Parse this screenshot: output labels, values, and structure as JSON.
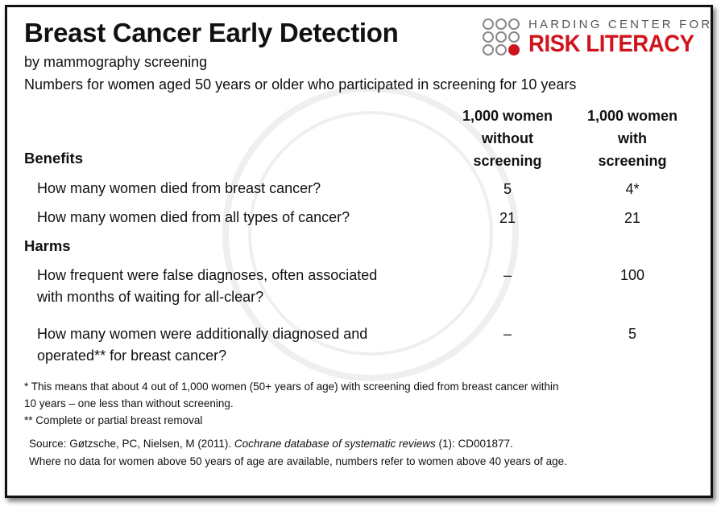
{
  "title": "Breast Cancer Early Detection",
  "subtitle": "by mammography screening",
  "description": "Numbers for women aged 50 years or older who participated in screening for 10 years",
  "logo": {
    "line1": "HARDING CENTER FOR",
    "line2": "RISK LITERACY",
    "accent": "#d0141e"
  },
  "columns": {
    "without": [
      "1,000 women",
      "without",
      "screening"
    ],
    "with": [
      "1,000 women",
      "with",
      "screening"
    ]
  },
  "sections": {
    "benefits": {
      "label": "Benefits",
      "rows": [
        {
          "question": "How many women died from breast cancer?",
          "without": "5",
          "with": "4*"
        },
        {
          "question": "How many women died from all types of cancer?",
          "without": "21",
          "with": "21"
        }
      ]
    },
    "harms": {
      "label": "Harms",
      "rows": [
        {
          "question": [
            "How frequent were false diagnoses, often associated",
            "with months of waiting for all-clear?"
          ],
          "without": "–",
          "with": "100"
        },
        {
          "question": [
            "How many women were additionally diagnosed and",
            "operated** for breast cancer?"
          ],
          "without": "–",
          "with": "5"
        }
      ]
    }
  },
  "footnotes": [
    "* This means that about 4 out of 1,000 women (50+ years of age) with screening died from breast cancer within",
    "10 years – one less than without screening.",
    "** Complete or partial breast removal"
  ],
  "source": {
    "prefix": "Source: Gøtzsche, PC, Nielsen, M (2011). ",
    "journal": "Cochrane database of systematic reviews",
    "suffix": " (1): CD001877.",
    "note": "Where no data for women above 50 years of age are available, numbers refer to women above 40 years of age."
  }
}
